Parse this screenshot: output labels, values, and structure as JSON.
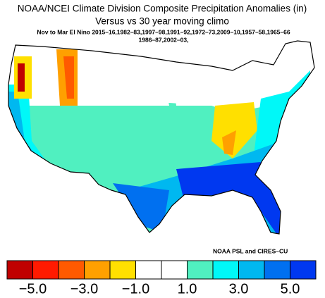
{
  "header": {
    "title": "NOAA/NCEI Climate Division Composite Precipitation Anomalies (in)",
    "subtitle": "Versus vs 30 year moving climo",
    "period_line_1": "Nov to Mar El Nino  2015–16,1982–83,1997–98,1991–92,1972–73,2009–10,1957–58,1965–66",
    "period_line_2": "1986–87,2002–03,"
  },
  "credit": "NOAA PSL and CIRES–CU",
  "legend": {
    "colors": [
      "#c00000",
      "#ff1a00",
      "#ff5a00",
      "#ffa000",
      "#ffe000",
      "#ffffff",
      "#ffffff",
      "#50f0c0",
      "#00f8f8",
      "#00b8f0",
      "#0070f0",
      "#0038f0"
    ],
    "labels": [
      "−5.0",
      "−3.0",
      "−1.0",
      "1.0",
      "3.0",
      "5.0"
    ]
  }
}
